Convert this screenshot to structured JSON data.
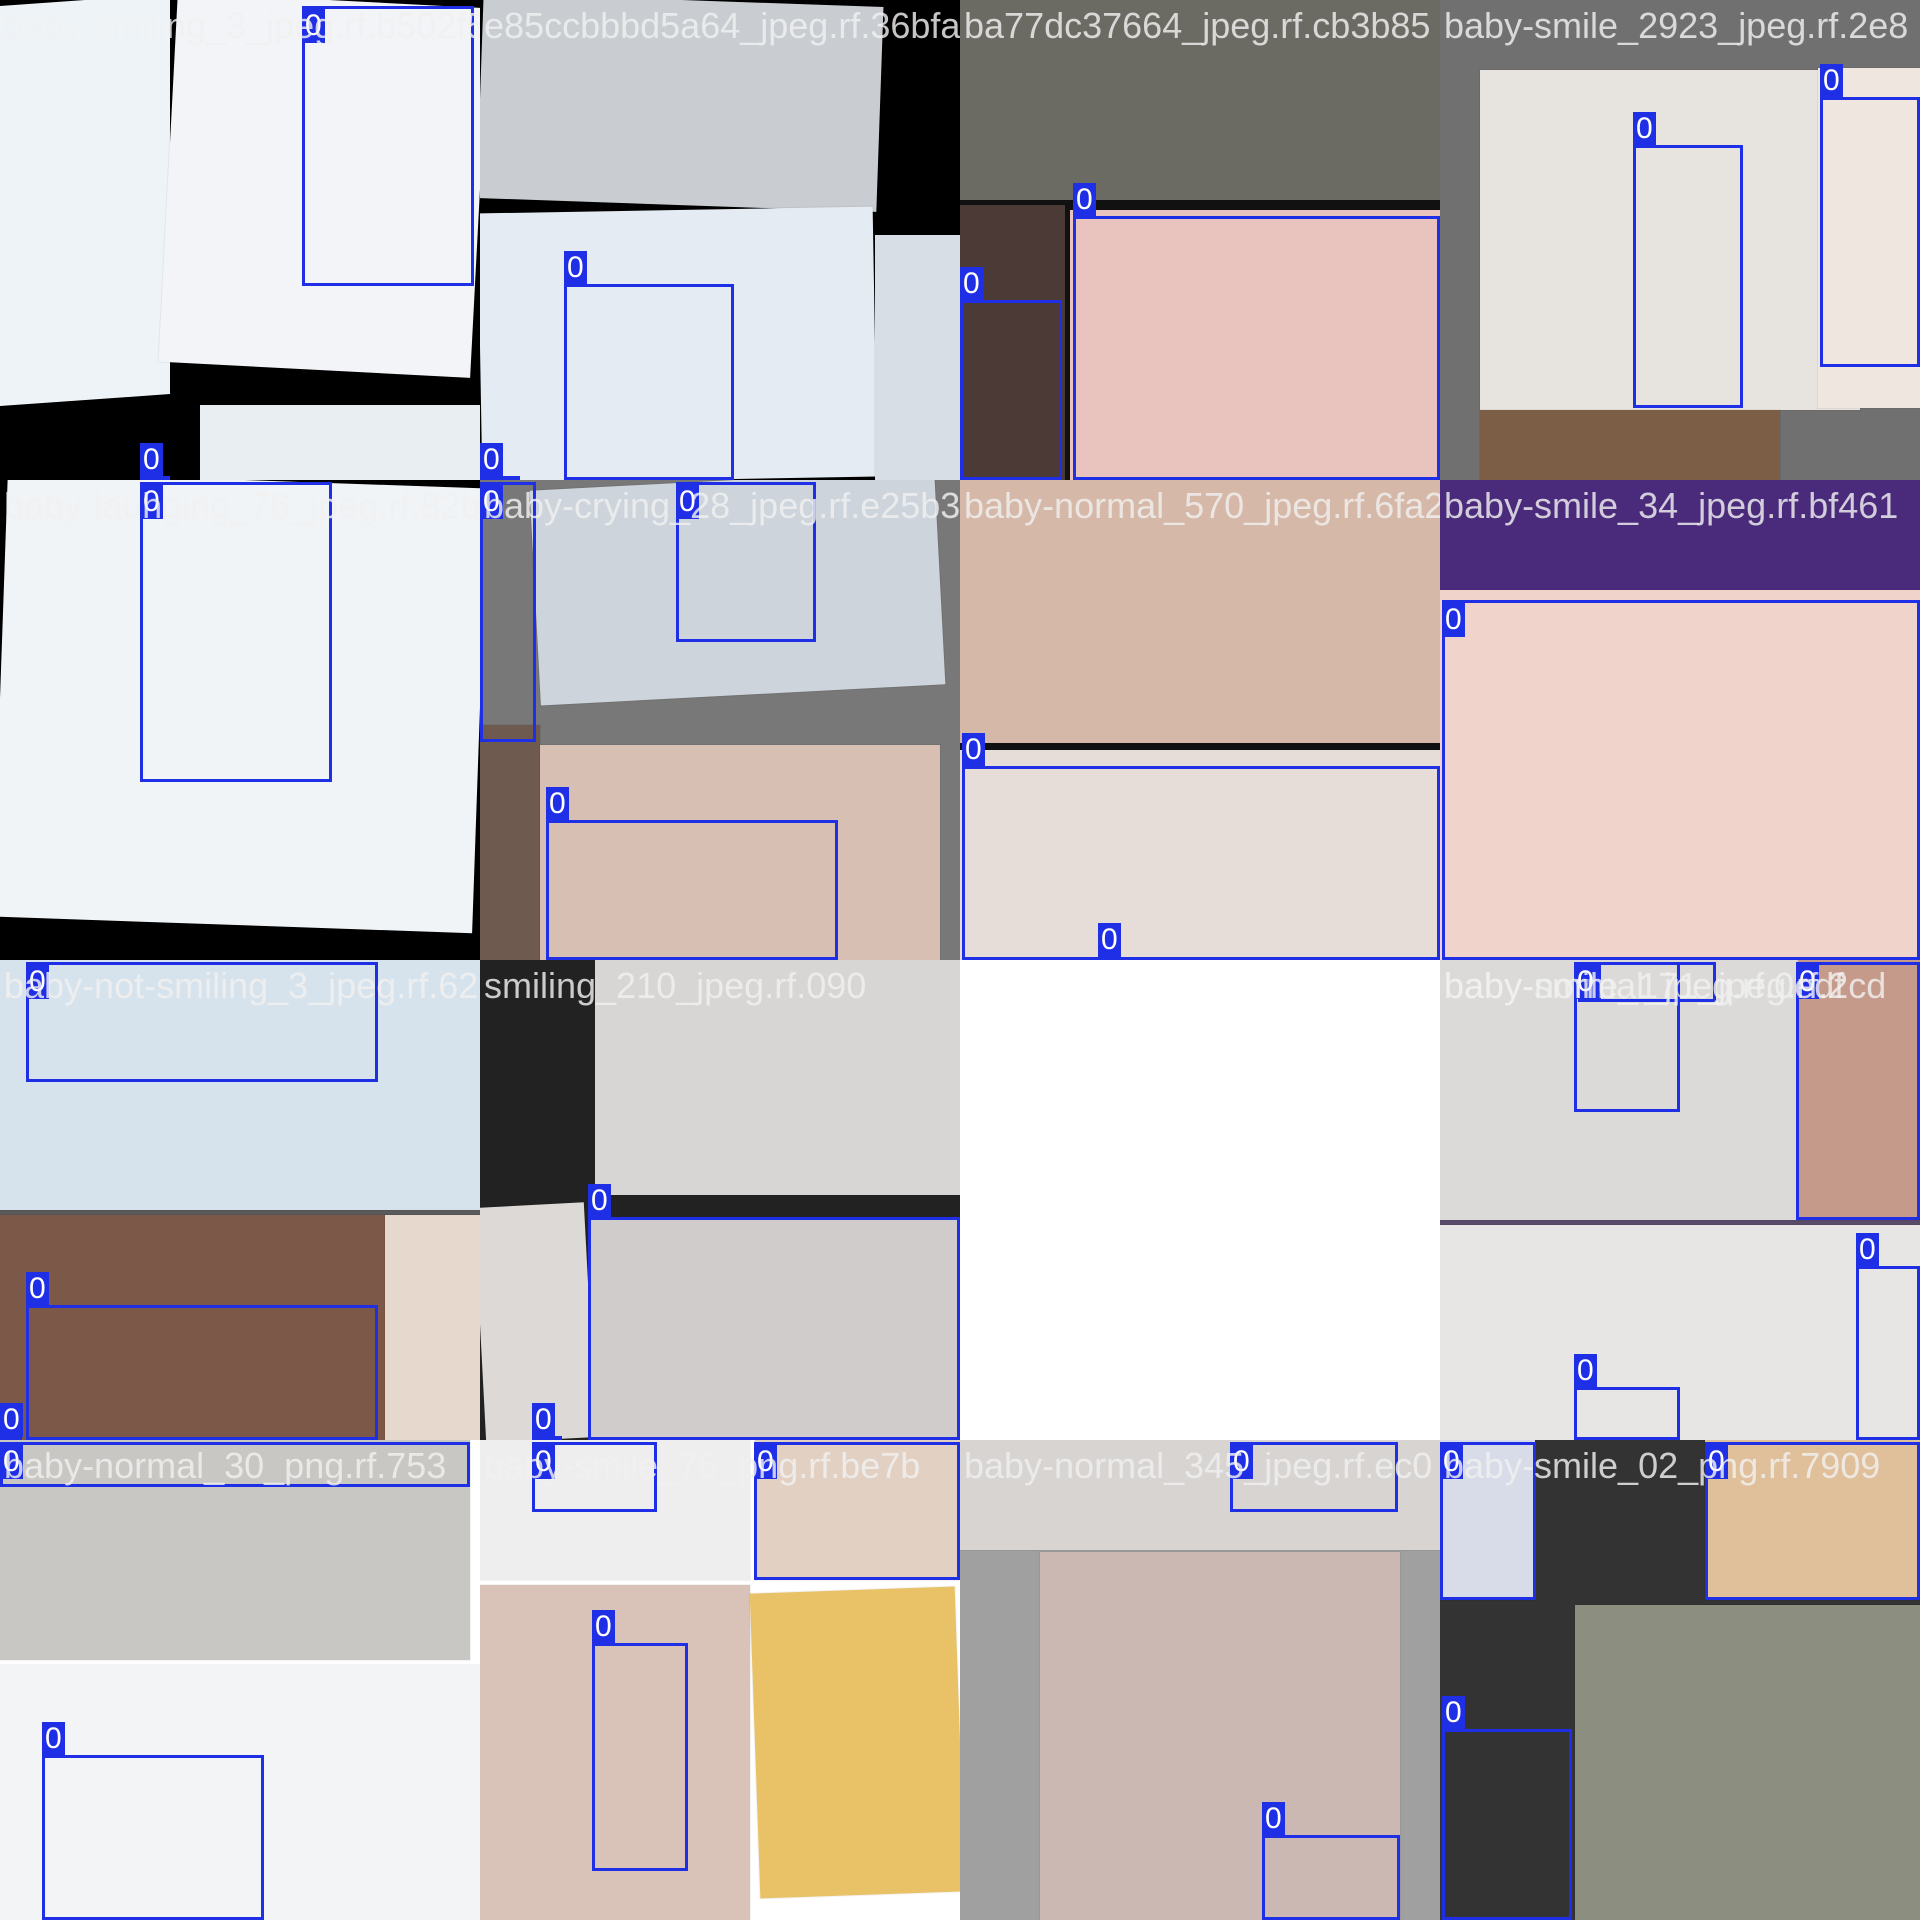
{
  "mosaic": {
    "box_color": "#1f2fe6",
    "tiles": [
      {
        "filename": "baby-smiling_3_jpeg.rf.b502f5",
        "bg": "#000000",
        "photos": [
          {
            "c": "#eef3f8"
          },
          {
            "c": "#f2f4f7"
          },
          {
            "c": "#e9eef3"
          }
        ],
        "boxes": [
          {
            "label": "0"
          },
          {
            "label": "0"
          }
        ]
      },
      {
        "filename": "e85ccbbbd5a64_jpeg.rf.36bfa",
        "bg": "#000000",
        "photos": [
          {
            "c": "#c9cdd1"
          },
          {
            "c": "#e4ebf2"
          },
          {
            "c": "#d7dee6"
          }
        ],
        "boxes": [
          {
            "label": "0"
          },
          {
            "label": "0"
          }
        ]
      },
      {
        "filename": "ba77dc37664_jpeg.rf.cb3b85",
        "bg": "#111111",
        "photos": [
          {
            "c": "#6b6a63"
          },
          {
            "c": "#e9c3bd"
          },
          {
            "c": "#4b3a36"
          }
        ],
        "boxes": [
          {
            "label": "0"
          },
          {
            "label": "0"
          }
        ]
      },
      {
        "filename": "baby-smile_2923_jpeg.rf.2e8",
        "bg": "#707070",
        "photos": [
          {
            "c": "#e7e3df"
          },
          {
            "c": "#efe6df"
          },
          {
            "c": "#7c5d45"
          }
        ],
        "boxes": [
          {
            "label": "0"
          },
          {
            "label": "0"
          }
        ]
      },
      {
        "filename": "baby-lauhging_76_jpeg.rf.82b",
        "bg": "#000000",
        "photos": [
          {
            "c": "#f1f4f7"
          }
        ],
        "boxes": [
          {
            "label": "0"
          }
        ]
      },
      {
        "filename": "baby-crying_28_jpeg.rf.e25b3d",
        "bg": "#787878",
        "photos": [
          {
            "c": "#cdd4db"
          },
          {
            "c": "#6e5a4f"
          },
          {
            "c": "#d8bfb4"
          }
        ],
        "boxes": [
          {
            "label": "0"
          },
          {
            "label": "0"
          },
          {
            "label": "0"
          }
        ]
      },
      {
        "filename": "baby-normal_570_jpeg.rf.6fa2",
        "bg": "#111111",
        "photos": [
          {
            "c": "#d6b8a8"
          },
          {
            "c": "#e6dcd8"
          }
        ],
        "boxes": [
          {
            "label": "0"
          },
          {
            "label": "0"
          }
        ]
      },
      {
        "filename": "baby-smile_34_jpeg.rf.bf461",
        "bg": "#4a2a7a",
        "photos": [
          {
            "c": "#f0d3cb"
          }
        ],
        "boxes": [
          {
            "label": "0"
          }
        ]
      },
      {
        "filename": "baby-not-smiling_3_jpeg.rf.62",
        "bg": "#5a5a5a",
        "photos": [
          {
            "c": "#d7e3ec"
          },
          {
            "c": "#7c5848"
          },
          {
            "c": "#e7d8ce"
          }
        ],
        "boxes": [
          {
            "label": "0"
          },
          {
            "label": "0"
          },
          {
            "label": "0"
          }
        ]
      },
      {
        "filename": "smiling_210_jpeg.rf.090",
        "bg": "#222222",
        "photos": [
          {
            "c": "#d8d6d4"
          },
          {
            "c": "#ddd9d6"
          },
          {
            "c": "#cfcccb"
          }
        ],
        "boxes": [
          {
            "label": "0"
          },
          {
            "label": "0"
          }
        ]
      },
      {
        "filename": "baby-normal_jpeg.rf.0edf",
        "bg": "#808080",
        "photos": [
          {
            "c": "#efefef"
          },
          {
            "c": "#e2c26c"
          }
        ],
        "boxes": [
          {
            "label": "0"
          }
        ]
      },
      {
        "filename": "baby-smile_171_jpeg.rf.2cd",
        "bg": "#5a4a6a",
        "photos": [
          {
            "c": "#dbdad9"
          },
          {
            "c": "#c69a8a"
          },
          {
            "c": "#e8e6e4"
          }
        ],
        "boxes": [
          {
            "label": "0"
          },
          {
            "label": "0"
          },
          {
            "label": "0"
          },
          {
            "label": "0"
          }
        ]
      },
      {
        "filename": "baby-normal_30_png.rf.753",
        "bg": "#ffffff",
        "photos": [
          {
            "c": "#c9c7c4"
          },
          {
            "c": "#f3f4f6"
          }
        ],
        "boxes": [
          {
            "label": "0"
          },
          {
            "label": "0"
          }
        ]
      },
      {
        "filename": "baby-smile_76_png.rf.be7b",
        "bg": "#ffffff",
        "photos": [
          {
            "c": "#eeeeee"
          },
          {
            "c": "#d9c3b8"
          },
          {
            "c": "#e2d0c2"
          },
          {
            "c": "#e9c267"
          }
        ],
        "boxes": [
          {
            "label": "0"
          },
          {
            "label": "0"
          },
          {
            "label": "0"
          }
        ]
      },
      {
        "filename": "baby-normal_345_jpeg.rf.ec0",
        "bg": "#a0a0a0",
        "photos": [
          {
            "c": "#d8d4d2"
          },
          {
            "c": "#cbb8b3"
          }
        ],
        "boxes": [
          {
            "label": "0"
          },
          {
            "label": "0"
          }
        ]
      },
      {
        "filename": "baby-smile_02_png.rf.7909",
        "bg": "#333333",
        "photos": [
          {
            "c": "#d8dce8"
          },
          {
            "c": "#e0c09a"
          },
          {
            "c": "#8c8f80"
          }
        ],
        "boxes": [
          {
            "label": "0"
          },
          {
            "label": "0"
          },
          {
            "label": "0"
          }
        ]
      }
    ]
  }
}
